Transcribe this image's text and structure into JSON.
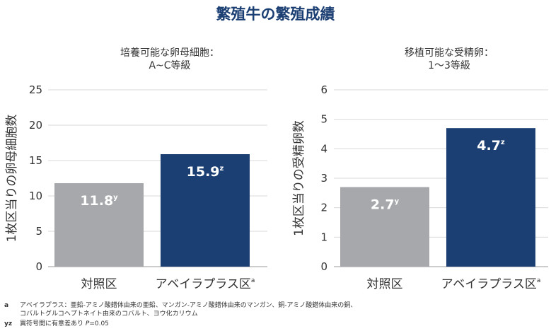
{
  "title": "繁殖牛の繁殖成績",
  "colors": {
    "control": "#a6a8ab",
    "treatment": "#1b3f73",
    "title": "#1b3f73",
    "grid": "#d9d9d9"
  },
  "chart_data": [
    {
      "type": "bar",
      "title_line1": "培養可能な卵母細胞：",
      "title_line2": "A~C等級",
      "ylabel": "1枚区当りの卵母細胞数",
      "ylim": [
        0,
        25
      ],
      "yticks": [
        0,
        5,
        10,
        15,
        20,
        25
      ],
      "grid": true,
      "categories": [
        "対照区",
        "アベイラプラス区"
      ],
      "category_superscripts": [
        "",
        "a"
      ],
      "values": [
        11.8,
        15.9
      ],
      "value_labels": [
        "11.8",
        "15.9"
      ],
      "value_superscripts": [
        "y",
        "z"
      ]
    },
    {
      "type": "bar",
      "title_line1": "移植可能な受精卵：",
      "title_line2": "1〜3等級",
      "ylabel": "1枚区当りの受精卵数",
      "ylim": [
        0,
        6
      ],
      "yticks": [
        0,
        1,
        2,
        3,
        4,
        5,
        6
      ],
      "grid": true,
      "categories": [
        "対照区",
        "アベイラプラス区"
      ],
      "category_superscripts": [
        "",
        "a"
      ],
      "values": [
        2.7,
        4.7
      ],
      "value_labels": [
        "2.7",
        "4.7"
      ],
      "value_superscripts": [
        "y",
        "z"
      ]
    }
  ],
  "footnotes": {
    "a_mark": "a",
    "a_text_line1": "アベイラプラス：亜鉛-アミノ酸錯体由来の亜鉛、マンガン-アミノ酸錯体由来のマンガン、銅-アミノ酸錯体由来の銅、",
    "a_text_line2": "コバルトグルコヘプトネイト由来のコバルト、ヨウ化カリウム",
    "yz_mark": "yz",
    "yz_text": "異符号間に有意差あり",
    "p_label": "P",
    "p_value": "=0.05"
  }
}
